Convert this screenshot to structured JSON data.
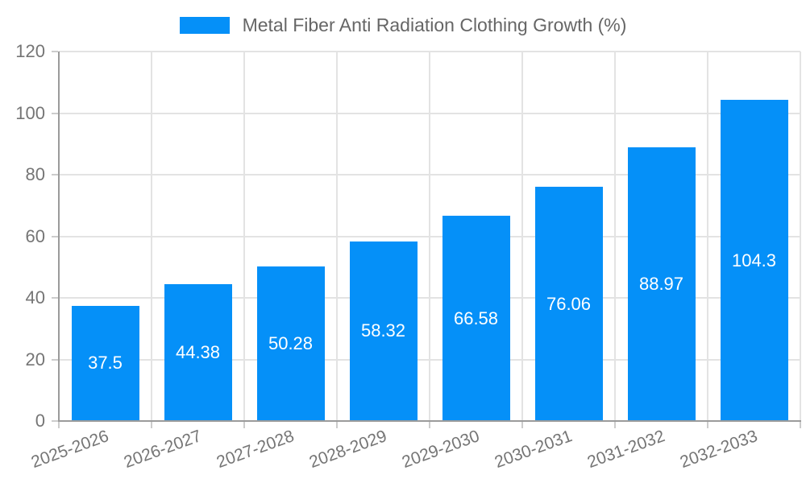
{
  "chart_data": {
    "type": "bar",
    "title": "Metal Fiber Anti Radiation Clothing Growth (%)",
    "categories": [
      "2025-2026",
      "2026-2027",
      "2027-2028",
      "2028-2029",
      "2029-2030",
      "2030-2031",
      "2031-2032",
      "2032-2033"
    ],
    "values": [
      37.5,
      44.38,
      50.28,
      58.32,
      66.58,
      76.06,
      88.97,
      104.3
    ],
    "value_labels": [
      "37.5",
      "44.38",
      "50.28",
      "58.32",
      "66.58",
      "76.06",
      "88.97",
      "104.3"
    ],
    "ytick_labels": [
      "0",
      "20",
      "40",
      "60",
      "80",
      "100",
      "120"
    ],
    "xlabel": "",
    "ylabel": "",
    "ylim": [
      0,
      120
    ],
    "ytick_step": 20,
    "grid": true,
    "legend_position": "top",
    "colors": {
      "bar": "#0590f8",
      "bar_value_text": "#ffffff",
      "axis": "#9b9b9b",
      "grid": "#e3e3e3",
      "tick_mark": "#cccccc",
      "tick_text": "#757575",
      "legend_text": "#666666",
      "background": "#ffffff"
    }
  }
}
